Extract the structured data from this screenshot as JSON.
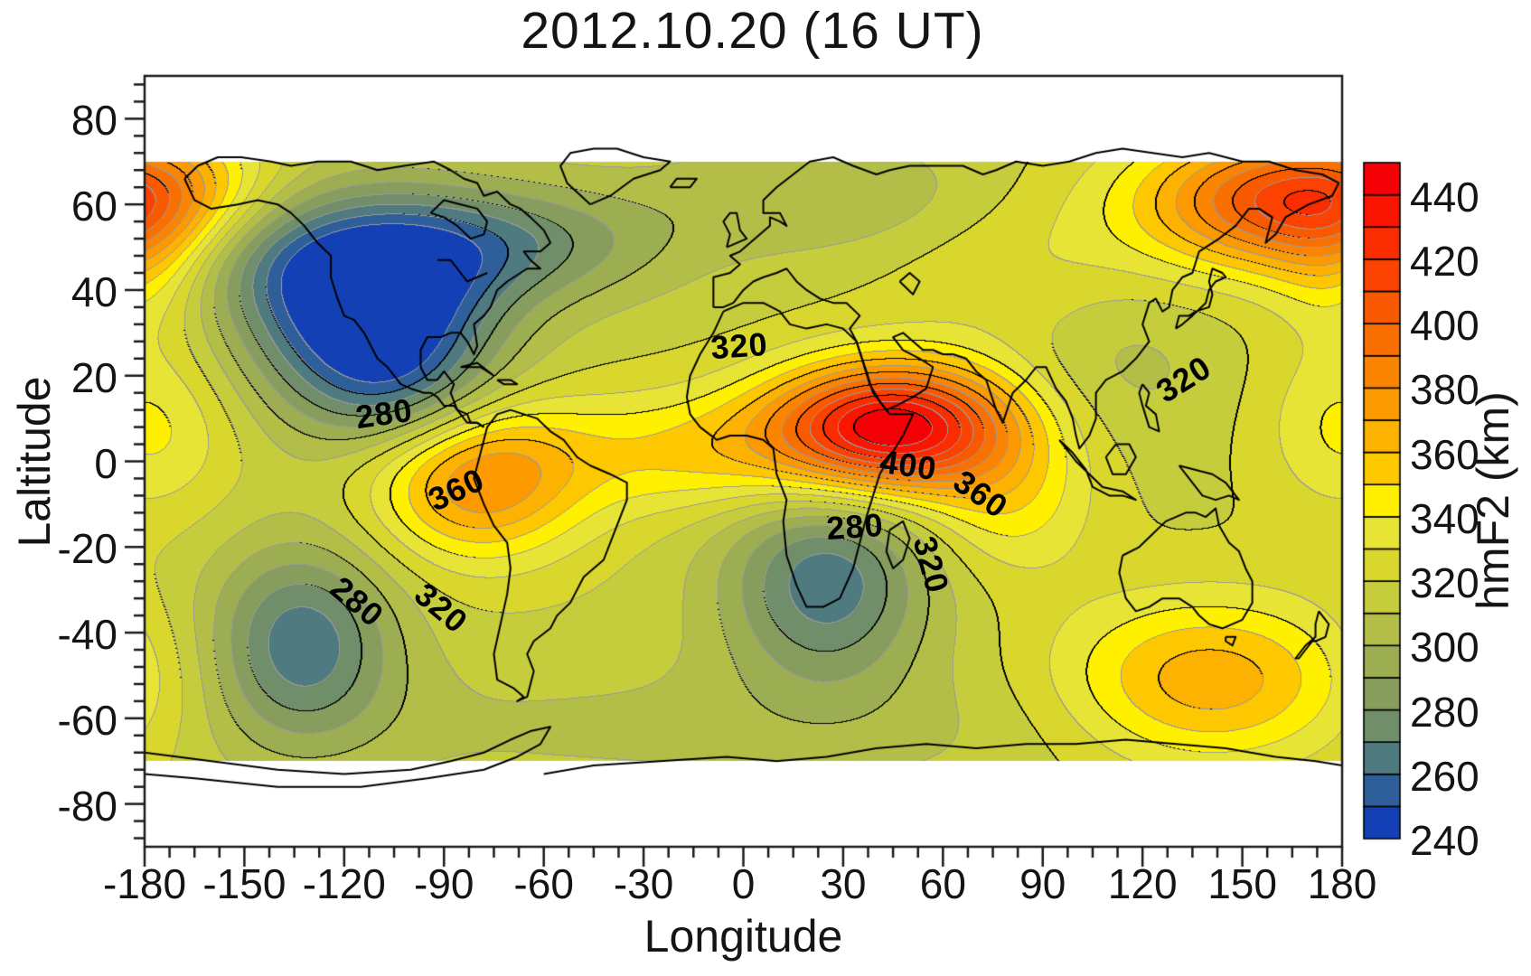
{
  "title": "2012.10.20 (16 UT)",
  "axes": {
    "x": {
      "label": "Longitude",
      "min": -180,
      "max": 180,
      "major_tick_step": 30,
      "minor_tick_step": 7.5,
      "tick_labels": [
        "-180",
        "-150",
        "-120",
        "-90",
        "-60",
        "-30",
        "0",
        "30",
        "60",
        "90",
        "120",
        "150",
        "180"
      ]
    },
    "y": {
      "label": "Laltitude",
      "min": -90,
      "max": 90,
      "major_tick_step": 20,
      "minor_tick_step": 4,
      "tick_labels": [
        "80",
        "60",
        "40",
        "20",
        "0",
        "-20",
        "-40",
        "-60",
        "-80"
      ]
    }
  },
  "colorbar": {
    "label": "hmF2 (km)",
    "min": 240,
    "max": 450,
    "box_step": 10,
    "label_step": 20,
    "tick_labels": [
      "440",
      "420",
      "400",
      "380",
      "360",
      "340",
      "320",
      "300",
      "280",
      "260",
      "240"
    ],
    "colors_low_to_high": [
      "#1341b5",
      "#2e5f9b",
      "#4f7b80",
      "#6f8e69",
      "#869d5d",
      "#9cad52",
      "#b2be47",
      "#c6cd3c",
      "#d9d72e",
      "#e8e436",
      "#fff000",
      "#fec800",
      "#fdb100",
      "#fc9a00",
      "#fb8500",
      "#fa7000",
      "#f95a00",
      "#fb4200",
      "#fa2d00",
      "#f91500",
      "#f60008"
    ]
  },
  "style_colors": {
    "contour_major": "#000000",
    "contour_minor": "#9a9a9a",
    "coastline": "#000000",
    "frame": "#1a1a1a",
    "text": "#141414",
    "background": "#ffffff"
  },
  "chart_data": {
    "type": "heatmap",
    "title": "2012.10.20 (16 UT)",
    "xlabel": "Longitude",
    "ylabel": "Laltitude",
    "value_label": "hmF2 (km)",
    "x_range": [
      -180,
      180
    ],
    "y_range": [
      -90,
      90
    ],
    "data_lat_range": [
      -70,
      70
    ],
    "value_range": [
      240,
      450
    ],
    "contour_interval_black": 20,
    "contour_interval_gray": 10,
    "extrema": [
      {
        "type": "max",
        "lon": 45,
        "lat": 8,
        "value": 450,
        "region": "East Africa"
      },
      {
        "type": "max",
        "lon": -80,
        "lat": -4,
        "value": 385,
        "region": "South America"
      },
      {
        "type": "max",
        "lon": 162,
        "lat": 61,
        "value": 403,
        "region": "Northwest Pacific"
      },
      {
        "type": "max",
        "lon": 140,
        "lat": -52,
        "value": 368,
        "region": "South Pacific"
      },
      {
        "type": "min",
        "lon": -112,
        "lat": 35,
        "value": 240,
        "region": "Southwest North America"
      },
      {
        "type": "min",
        "lon": -133,
        "lat": -42,
        "value": 263,
        "region": "Southeast Pacific"
      },
      {
        "type": "min",
        "lon": 25,
        "lat": -28,
        "value": 263,
        "region": "Southern Africa"
      }
    ],
    "contour_labels": [
      {
        "text": "320",
        "lon": -1.2,
        "lat": 26.9,
        "rot": -4
      },
      {
        "text": "280",
        "lon": -108,
        "lat": 11.1,
        "rot": -8
      },
      {
        "text": "360",
        "lon": -86.3,
        "lat": -6.7,
        "rot": -25
      },
      {
        "text": "400",
        "lon": 49.6,
        "lat": -1.0,
        "rot": 8
      },
      {
        "text": "360",
        "lon": 71.3,
        "lat": -7.7,
        "rot": 35
      },
      {
        "text": "280",
        "lon": 33.5,
        "lat": -15.3,
        "rot": -4
      },
      {
        "text": "280",
        "lon": -116.2,
        "lat": -32.8,
        "rot": 40
      },
      {
        "text": "320",
        "lon": -90.9,
        "lat": -34.3,
        "rot": 40
      },
      {
        "text": "320",
        "lon": 56.4,
        "lat": -24.2,
        "rot": 75
      },
      {
        "text": "320",
        "lon": 132.4,
        "lat": 19.1,
        "rot": -32
      }
    ],
    "field_model": {
      "base": 318,
      "gaussians": [
        {
          "lon": -112,
          "lat": 35,
          "amp": -92,
          "sx": 26,
          "sy": 17
        },
        {
          "lon": -100,
          "lat": 14,
          "amp": -20,
          "sx": 20,
          "sy": 10
        },
        {
          "lon": -72,
          "lat": 51,
          "amp": -40,
          "sx": 34,
          "sy": 10
        },
        {
          "lon": -148,
          "lat": 50,
          "amp": -28,
          "sx": 22,
          "sy": 11
        },
        {
          "lon": 45,
          "lat": 8,
          "amp": 130,
          "sx": 26,
          "sy": 10.5
        },
        {
          "lon": 80,
          "lat": -10,
          "amp": 25,
          "sx": 18,
          "sy": 12
        },
        {
          "lon": -15,
          "lat": 2,
          "amp": 32,
          "sx": 34,
          "sy": 10
        },
        {
          "lon": -80,
          "lat": -4,
          "amp": 62,
          "sx": 22,
          "sy": 13
        },
        {
          "lon": -133,
          "lat": -42,
          "amp": -55,
          "sx": 20,
          "sy": 16
        },
        {
          "lon": 25,
          "lat": -28,
          "amp": -55,
          "sx": 22,
          "sy": 17
        },
        {
          "lon": 162,
          "lat": 61,
          "amp": 85,
          "sx": 30,
          "sy": 11
        },
        {
          "lon": 140,
          "lat": -52,
          "amp": 52,
          "sx": 32,
          "sy": 14
        },
        {
          "lon": 114,
          "lat": 27,
          "amp": -14,
          "sx": 22,
          "sy": 16
        },
        {
          "lon": -172,
          "lat": 62,
          "amp": 26,
          "sx": 22,
          "sy": 11
        },
        {
          "lon": 0,
          "lat": -62,
          "amp": -10,
          "sx": 140,
          "sy": 12
        },
        {
          "lon": 25,
          "lat": 62,
          "amp": -18,
          "sx": 35,
          "sy": 10
        },
        {
          "lon": 95,
          "lat": 45,
          "amp": 14,
          "sx": 35,
          "sy": 14
        },
        {
          "lon": -178,
          "lat": 8,
          "amp": 25,
          "sx": 18,
          "sy": 14
        },
        {
          "lon": -180,
          "lat": 45,
          "amp": 22,
          "sx": 14,
          "sy": 12
        }
      ]
    }
  },
  "coastlines": [
    [
      -168,
      66,
      -165,
      61,
      -160,
      59,
      -152,
      60,
      -146,
      61,
      -140,
      60,
      -136,
      58,
      -132,
      55,
      -128,
      51,
      -124,
      48,
      -124,
      43,
      -122,
      38,
      -120,
      34,
      -117,
      33,
      -114,
      30,
      -112,
      27,
      -110,
      24,
      -107,
      22,
      -105,
      20,
      -103,
      18,
      -100,
      17,
      -96,
      16,
      -94,
      16,
      -92,
      15,
      -90,
      13,
      -87,
      13,
      -85,
      11,
      -83,
      9,
      -80,
      9,
      -78,
      8
    ],
    [
      -78,
      8,
      -80,
      9,
      -82,
      9,
      -83,
      11,
      -86,
      12,
      -88,
      16,
      -87,
      18,
      -90,
      21,
      -92,
      19,
      -95,
      19,
      -97,
      22,
      -97,
      26,
      -95,
      29,
      -91,
      29,
      -88,
      30,
      -85,
      30,
      -83,
      28,
      -81,
      25,
      -80,
      27,
      -81,
      32,
      -78,
      34,
      -76,
      36,
      -74,
      40,
      -71,
      42,
      -67,
      44,
      -65,
      45,
      -61,
      45,
      -64,
      47,
      -66,
      49,
      -61,
      49,
      -58,
      51,
      -60,
      54,
      -64,
      57,
      -67,
      59,
      -70,
      60,
      -74,
      63,
      -78,
      62,
      -80,
      65,
      -84,
      66,
      -88,
      68,
      -93,
      70,
      -102,
      69,
      -110,
      68,
      -118,
      70,
      -128,
      70,
      -136,
      69,
      -142,
      70,
      -151,
      71,
      -158,
      71,
      -164,
      69,
      -168,
      66
    ],
    [
      -92,
      47,
      -88,
      47,
      -86,
      45,
      -83,
      42,
      -80,
      43,
      -77,
      44
    ],
    [
      -94,
      58,
      -90,
      57,
      -86,
      55,
      -82,
      52,
      -78,
      53,
      -77,
      56,
      -80,
      59,
      -85,
      60,
      -90,
      61,
      -94,
      58
    ],
    [
      -85,
      22,
      -80,
      23,
      -75,
      20,
      -79,
      22,
      -85,
      22
    ],
    [
      -74,
      19,
      -70,
      19,
      -68,
      18,
      -72,
      18,
      -74,
      19
    ],
    [
      -46,
      60,
      -53,
      65,
      -55,
      69,
      -52,
      72,
      -45,
      73,
      -38,
      73,
      -30,
      71,
      -22,
      70,
      -25,
      68,
      -33,
      66,
      -40,
      62,
      -46,
      60
    ],
    [
      -22,
      64,
      -16,
      64,
      -14,
      66,
      -20,
      66,
      -22,
      64
    ],
    [
      -77,
      8,
      -79,
      2,
      -81,
      -4,
      -78,
      -10,
      -75,
      -15,
      -71,
      -19,
      -70,
      -25,
      -71,
      -31,
      -73,
      -38,
      -75,
      -45,
      -74,
      -51,
      -69,
      -53,
      -66,
      -55,
      -68,
      -56,
      -65,
      -55,
      -63,
      -49,
      -65,
      -45,
      -63,
      -42,
      -58,
      -39,
      -56,
      -36,
      -52,
      -33,
      -48,
      -27,
      -42,
      -23,
      -39,
      -17,
      -35,
      -9,
      -35,
      -5,
      -40,
      -3,
      -46,
      -1,
      -50,
      1,
      -54,
      5,
      -58,
      7,
      -62,
      10,
      -66,
      11,
      -70,
      12,
      -74,
      11,
      -77,
      8
    ],
    [
      -6,
      35,
      0,
      37,
      6,
      37,
      11,
      35,
      14,
      32,
      19,
      31,
      25,
      32,
      30,
      31,
      34,
      28,
      36,
      23,
      38,
      18,
      41,
      14,
      44,
      11,
      48,
      11,
      51,
      11,
      48,
      6,
      44,
      1,
      41,
      -3,
      39,
      -8,
      37,
      -13,
      35,
      -19,
      33,
      -25,
      29,
      -32,
      24,
      -34,
      19,
      -34,
      16,
      -29,
      13,
      -22,
      12,
      -14,
      13,
      -9,
      10,
      -3,
      9,
      3,
      6,
      5,
      1,
      6,
      -4,
      6,
      -8,
      5,
      -13,
      8,
      -16,
      11,
      -17,
      15,
      -16,
      20,
      -13,
      25,
      -9,
      30,
      -6,
      35
    ],
    [
      44,
      -16,
      48,
      -14,
      50,
      -18,
      48,
      -23,
      45,
      -25,
      43,
      -21,
      44,
      -16
    ],
    [
      -9,
      36,
      -9,
      43,
      -4,
      44,
      -1,
      46,
      -4,
      48,
      -1,
      49,
      2,
      51,
      5,
      53,
      8,
      55,
      8,
      57,
      11,
      56,
      13,
      55,
      11,
      58,
      6,
      58,
      6,
      61,
      10,
      64,
      15,
      67,
      20,
      70,
      27,
      71,
      33,
      69,
      40,
      67,
      44,
      68,
      50,
      69,
      58,
      69,
      66,
      69,
      72,
      67,
      76,
      68,
      82,
      70,
      90,
      69,
      98,
      70,
      106,
      72,
      114,
      73,
      123,
      72,
      132,
      71,
      140,
      72,
      150,
      70,
      158,
      70,
      166,
      68,
      174,
      67,
      179,
      65,
      177,
      62,
      170,
      60,
      163,
      57,
      160,
      53,
      157,
      51,
      159,
      57,
      155,
      59,
      152,
      59,
      148,
      55,
      143,
      52,
      137,
      49,
      135,
      44,
      132,
      43,
      129,
      40,
      128,
      36,
      126,
      35,
      124,
      38,
      122,
      37,
      120,
      32,
      122,
      28,
      118,
      24,
      114,
      21,
      109,
      19,
      106,
      16,
      106,
      10,
      104,
      6,
      101,
      3,
      100,
      6,
      99,
      10,
      97,
      14,
      94,
      17,
      91,
      22,
      88,
      22,
      85,
      19,
      81,
      16,
      78,
      9,
      76,
      12,
      73,
      19,
      70,
      21,
      67,
      24,
      63,
      25,
      60,
      25,
      57,
      26,
      54,
      26,
      51,
      28,
      48,
      30,
      45,
      29,
      48,
      26,
      53,
      24,
      57,
      22,
      55,
      17,
      51,
      15,
      46,
      13,
      43,
      12,
      39,
      16,
      37,
      21,
      34,
      28,
      32,
      31,
      35,
      34,
      31,
      37,
      27,
      37,
      23,
      38,
      19,
      40,
      16,
      42,
      13,
      45,
      10,
      44,
      6,
      43,
      3,
      42,
      0,
      40,
      -3,
      37,
      -6,
      36,
      -9,
      36
    ],
    [
      -5,
      50,
      -4,
      53,
      -6,
      56,
      -4,
      58,
      -2,
      58,
      -1,
      54,
      1,
      52,
      -5,
      50
    ],
    [
      47,
      42,
      50,
      44,
      53,
      42,
      51,
      39,
      47,
      42
    ],
    [
      130,
      31,
      131,
      34,
      134,
      34,
      136,
      35,
      140,
      36,
      141,
      39,
      140,
      42,
      141,
      45,
      144,
      44,
      145,
      43,
      142,
      42,
      140,
      40,
      139,
      37,
      135,
      34,
      132,
      32,
      130,
      31
    ],
    [
      109,
      1,
      112,
      4,
      116,
      4,
      118,
      1,
      115,
      -3,
      111,
      -3,
      109,
      1
    ],
    [
      95,
      5,
      99,
      2,
      103,
      -2,
      105,
      -6,
      110,
      -8,
      114,
      -8,
      118,
      -9,
      114,
      -7,
      108,
      -6,
      104,
      -3,
      100,
      0,
      96,
      4,
      95,
      5
    ],
    [
      131,
      -1,
      136,
      -2,
      141,
      -3,
      145,
      -5,
      149,
      -9,
      146,
      -8,
      142,
      -9,
      138,
      -8,
      134,
      -4,
      131,
      -1
    ],
    [
      120,
      18,
      122,
      16,
      121,
      13,
      124,
      11,
      125,
      7,
      122,
      8,
      120,
      13,
      119,
      16,
      120,
      18
    ],
    [
      114,
      -22,
      113,
      -26,
      115,
      -32,
      118,
      -35,
      122,
      -34,
      126,
      -32,
      131,
      -32,
      135,
      -34,
      137,
      -36,
      140,
      -38,
      144,
      -39,
      147,
      -38,
      150,
      -37,
      153,
      -33,
      153,
      -28,
      151,
      -25,
      149,
      -21,
      146,
      -19,
      143,
      -15,
      142,
      -11,
      139,
      -13,
      136,
      -12,
      133,
      -12,
      130,
      -13,
      127,
      -14,
      123,
      -17,
      119,
      -20,
      114,
      -22
    ],
    [
      145,
      -41,
      148,
      -41,
      147,
      -43,
      145,
      -42,
      145,
      -41
    ],
    [
      173,
      -35,
      176,
      -38,
      175,
      -41,
      172,
      -42,
      171,
      -42,
      169,
      -44,
      167,
      -46,
      166,
      -46,
      169,
      -43,
      172,
      -41,
      172,
      -38,
      173,
      -35
    ],
    [
      -180,
      -68,
      -160,
      -70,
      -140,
      -72,
      -120,
      -73,
      -100,
      -72,
      -88,
      -70,
      -78,
      -68,
      -70,
      -65,
      -64,
      -63,
      -58,
      -62,
      -61,
      -66,
      -68,
      -69,
      -78,
      -72,
      -95,
      -74,
      -115,
      -76,
      -140,
      -76,
      -165,
      -74,
      -180,
      -73
    ],
    [
      -60,
      -73,
      -45,
      -71,
      -25,
      -70,
      -5,
      -69,
      10,
      -70,
      25,
      -69,
      40,
      -67,
      55,
      -66,
      70,
      -67,
      85,
      -66,
      100,
      -66,
      115,
      -65,
      130,
      -66,
      145,
      -67,
      160,
      -69,
      172,
      -70,
      180,
      -71
    ]
  ]
}
